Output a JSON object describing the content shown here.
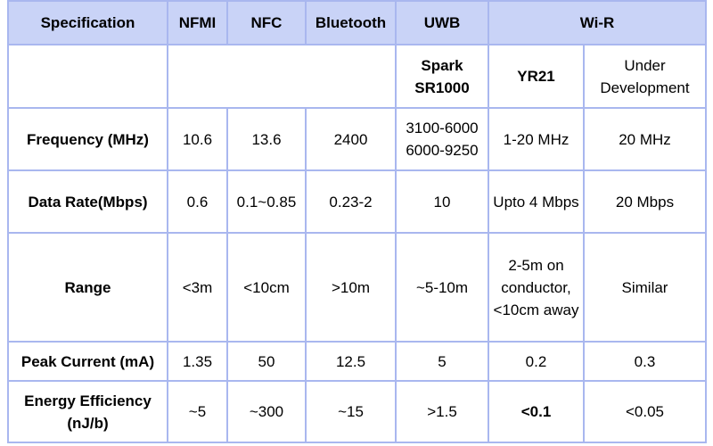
{
  "header": {
    "specification": "Specification",
    "nfmi": "NFMI",
    "nfc": "NFC",
    "bluetooth": "Bluetooth",
    "uwb": "UWB",
    "wir": "Wi-R"
  },
  "subheader": {
    "uwb": "Spark SR1000",
    "yr21": "YR21",
    "under_dev": "Under Development"
  },
  "rows": {
    "frequency": {
      "label": "Frequency (MHz)",
      "nfmi": "10.6",
      "nfc": "13.6",
      "bluetooth": "2400",
      "uwb_line1": "3100-6000",
      "uwb_line2": "6000-9250",
      "yr21": "1-20 MHz",
      "under_dev": "20 MHz"
    },
    "data_rate": {
      "label": "Data Rate(Mbps)",
      "nfmi": "0.6",
      "nfc": "0.1~0.85",
      "bluetooth": "0.23-2",
      "uwb": "10",
      "yr21": "Upto 4 Mbps",
      "under_dev": "20 Mbps"
    },
    "range": {
      "label": "Range",
      "nfmi": "<3m",
      "nfc": "<10cm",
      "bluetooth": ">10m",
      "uwb": "~5-10m",
      "yr21": "2-5m on conductor, <10cm away",
      "under_dev": "Similar"
    },
    "peak_current": {
      "label": "Peak Current (mA)",
      "nfmi": "1.35",
      "nfc": "50",
      "bluetooth": "12.5",
      "uwb": "5",
      "yr21": "0.2",
      "under_dev": "0.3"
    },
    "energy_efficiency": {
      "label": "Energy Efficiency (nJ/b)",
      "nfmi": "~5",
      "nfc": "~300",
      "bluetooth": "~15",
      "uwb": ">1.5",
      "yr21": "<0.1",
      "under_dev": "<0.05"
    }
  },
  "colors": {
    "header_bg": "#c9d3f7",
    "border": "#a9b7ef"
  }
}
